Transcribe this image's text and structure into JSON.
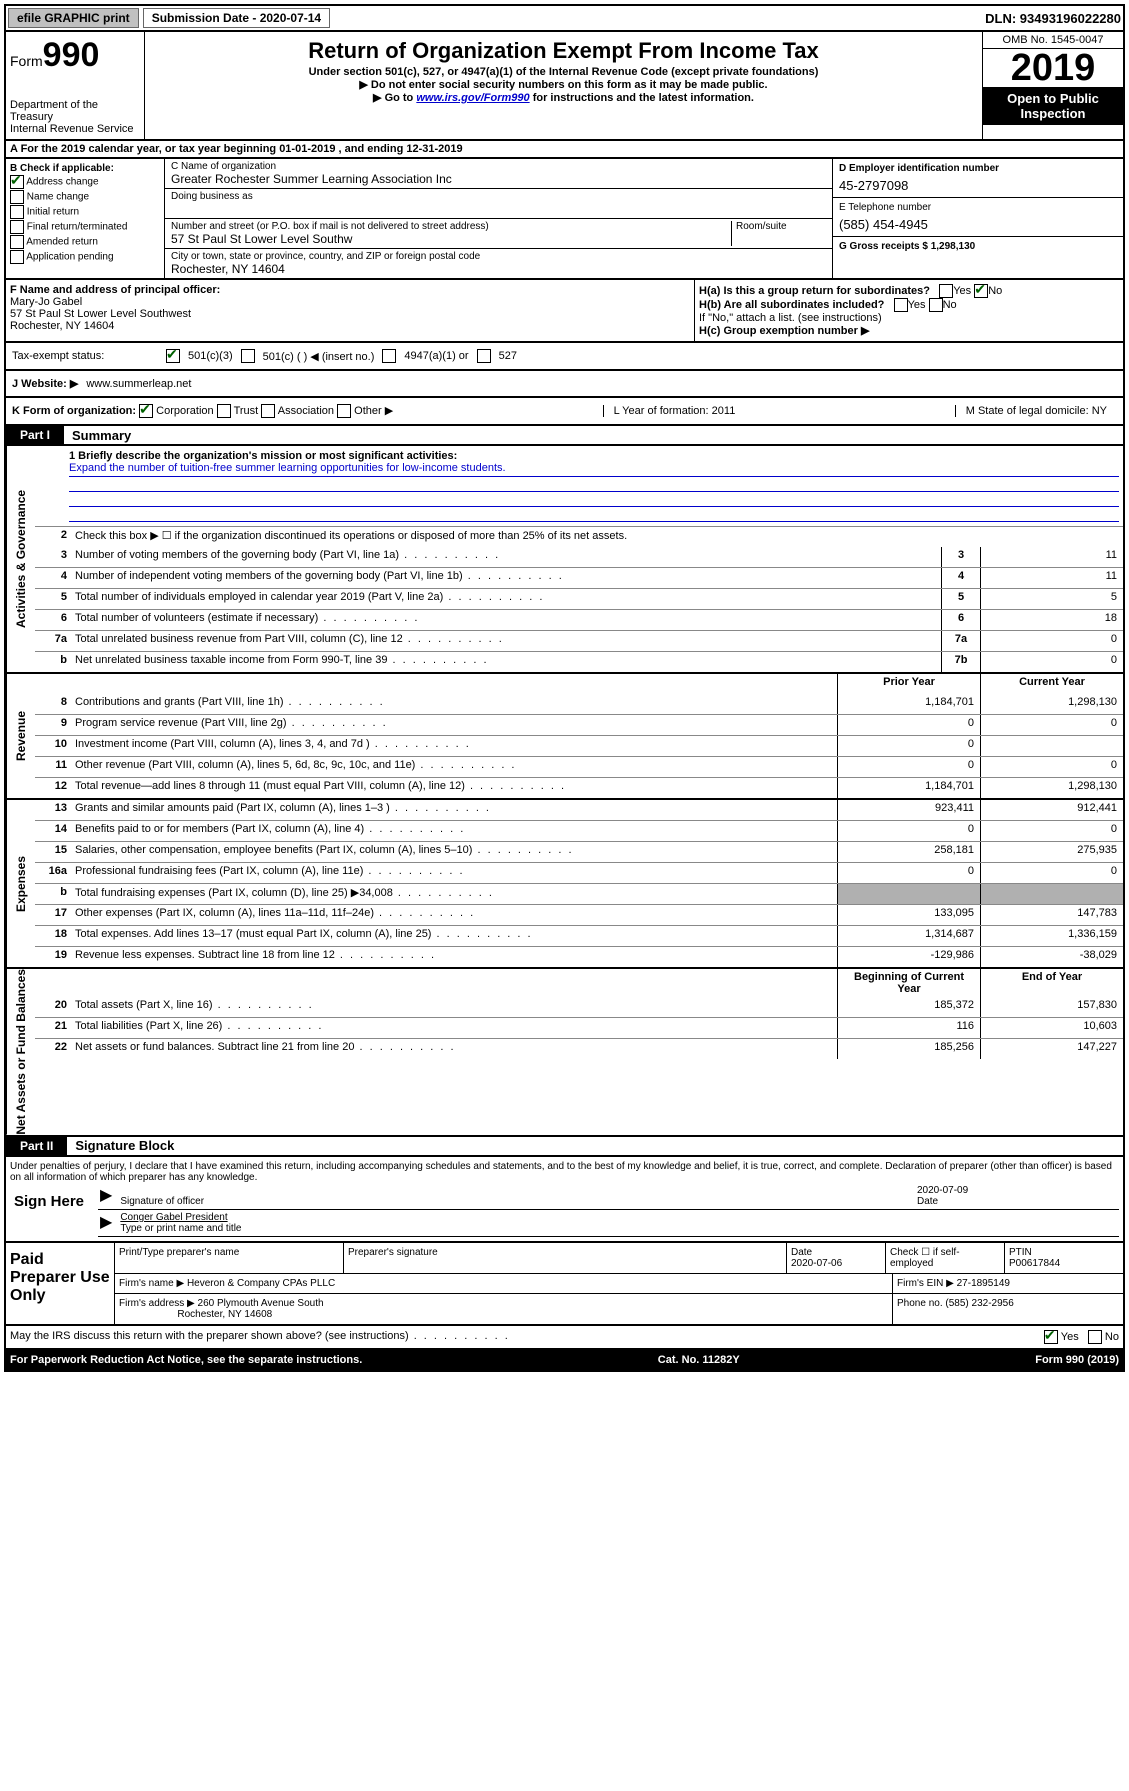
{
  "topbar": {
    "efile": "efile GRAPHIC print",
    "submission_label": "Submission Date - 2020-07-14",
    "dln": "DLN: 93493196022280"
  },
  "header": {
    "form_prefix": "Form",
    "form_number": "990",
    "dept": "Department of the Treasury\nInternal Revenue Service",
    "title": "Return of Organization Exempt From Income Tax",
    "subtitle": "Under section 501(c), 527, or 4947(a)(1) of the Internal Revenue Code (except private foundations)",
    "note1": "▶ Do not enter social security numbers on this form as it may be made public.",
    "note2_pre": "▶ Go to ",
    "note2_link": "www.irs.gov/Form990",
    "note2_post": " for instructions and the latest information.",
    "omb": "OMB No. 1545-0047",
    "year": "2019",
    "open": "Open to Public Inspection"
  },
  "rowA": "A  For the 2019 calendar year, or tax year beginning 01-01-2019    , and ending 12-31-2019",
  "boxB": {
    "header": "B Check if applicable:",
    "items": [
      "Address change",
      "Name change",
      "Initial return",
      "Final return/terminated",
      "Amended return",
      "Application pending"
    ],
    "checked_index": 0
  },
  "boxC": {
    "name_label": "C Name of organization",
    "name": "Greater Rochester Summer Learning Association Inc",
    "dba_label": "Doing business as",
    "addr_label": "Number and street (or P.O. box if mail is not delivered to street address)",
    "room_label": "Room/suite",
    "addr": "57 St Paul St Lower Level Southw",
    "city_label": "City or town, state or province, country, and ZIP or foreign postal code",
    "city": "Rochester, NY  14604"
  },
  "boxD": {
    "ein_label": "D Employer identification number",
    "ein": "45-2797098",
    "tel_label": "E Telephone number",
    "tel": "(585) 454-4945",
    "gross_label": "G Gross receipts $ 1,298,130"
  },
  "boxF": {
    "label": "F  Name and address of principal officer:",
    "name": "Mary-Jo Gabel",
    "addr1": "57 St Paul St Lower Level Southwest",
    "addr2": "Rochester, NY  14604"
  },
  "boxH": {
    "ha": "H(a)  Is this a group return for subordinates?",
    "hb": "H(b)  Are all subordinates included?",
    "hb_note": "If \"No,\" attach a list. (see instructions)",
    "hc": "H(c)  Group exemption number ▶"
  },
  "taxstatus": {
    "label": "Tax-exempt status:",
    "opt1": "501(c)(3)",
    "opt2": "501(c) (  ) ◀ (insert no.)",
    "opt3": "4947(a)(1) or",
    "opt4": "527"
  },
  "websiteJ": {
    "label": "J  Website: ▶",
    "url": "www.summerleap.net"
  },
  "rowK": {
    "label": "K Form of organization:",
    "opts": [
      "Corporation",
      "Trust",
      "Association",
      "Other ▶"
    ],
    "L": "L Year of formation: 2011",
    "M": "M State of legal domicile: NY"
  },
  "partI": {
    "tab": "Part I",
    "title": "Summary",
    "line1_label": "1  Briefly describe the organization's mission or most significant activities:",
    "line1_text": "Expand the number of tuition-free summer learning opportunities for low-income students.",
    "line2": "Check this box ▶ ☐  if the organization discontinued its operations or disposed of more than 25% of its net assets.",
    "lines_top": [
      {
        "n": "3",
        "d": "Number of voting members of the governing body (Part VI, line 1a)",
        "b": "3",
        "v": "11"
      },
      {
        "n": "4",
        "d": "Number of independent voting members of the governing body (Part VI, line 1b)",
        "b": "4",
        "v": "11"
      },
      {
        "n": "5",
        "d": "Total number of individuals employed in calendar year 2019 (Part V, line 2a)",
        "b": "5",
        "v": "5"
      },
      {
        "n": "6",
        "d": "Total number of volunteers (estimate if necessary)",
        "b": "6",
        "v": "18"
      },
      {
        "n": "7a",
        "d": "Total unrelated business revenue from Part VIII, column (C), line 12",
        "b": "7a",
        "v": "0"
      },
      {
        "n": "b",
        "d": "Net unrelated business taxable income from Form 990-T, line 39",
        "b": "7b",
        "v": "0"
      }
    ],
    "col_headers": {
      "prior": "Prior Year",
      "current": "Current Year"
    },
    "revenue": [
      {
        "n": "8",
        "d": "Contributions and grants (Part VIII, line 1h)",
        "p": "1,184,701",
        "c": "1,298,130"
      },
      {
        "n": "9",
        "d": "Program service revenue (Part VIII, line 2g)",
        "p": "0",
        "c": "0"
      },
      {
        "n": "10",
        "d": "Investment income (Part VIII, column (A), lines 3, 4, and 7d )",
        "p": "0",
        "c": ""
      },
      {
        "n": "11",
        "d": "Other revenue (Part VIII, column (A), lines 5, 6d, 8c, 9c, 10c, and 11e)",
        "p": "0",
        "c": "0"
      },
      {
        "n": "12",
        "d": "Total revenue—add lines 8 through 11 (must equal Part VIII, column (A), line 12)",
        "p": "1,184,701",
        "c": "1,298,130"
      }
    ],
    "expenses": [
      {
        "n": "13",
        "d": "Grants and similar amounts paid (Part IX, column (A), lines 1–3 )",
        "p": "923,411",
        "c": "912,441"
      },
      {
        "n": "14",
        "d": "Benefits paid to or for members (Part IX, column (A), line 4)",
        "p": "0",
        "c": "0"
      },
      {
        "n": "15",
        "d": "Salaries, other compensation, employee benefits (Part IX, column (A), lines 5–10)",
        "p": "258,181",
        "c": "275,935"
      },
      {
        "n": "16a",
        "d": "Professional fundraising fees (Part IX, column (A), line 11e)",
        "p": "0",
        "c": "0"
      },
      {
        "n": "b",
        "d": "Total fundraising expenses (Part IX, column (D), line 25) ▶34,008",
        "p": "",
        "c": "",
        "shaded": true
      },
      {
        "n": "17",
        "d": "Other expenses (Part IX, column (A), lines 11a–11d, 11f–24e)",
        "p": "133,095",
        "c": "147,783"
      },
      {
        "n": "18",
        "d": "Total expenses. Add lines 13–17 (must equal Part IX, column (A), line 25)",
        "p": "1,314,687",
        "c": "1,336,159"
      },
      {
        "n": "19",
        "d": "Revenue less expenses. Subtract line 18 from line 12",
        "p": "-129,986",
        "c": "-38,029"
      }
    ],
    "col_headers2": {
      "prior": "Beginning of Current Year",
      "current": "End of Year"
    },
    "netassets": [
      {
        "n": "20",
        "d": "Total assets (Part X, line 16)",
        "p": "185,372",
        "c": "157,830"
      },
      {
        "n": "21",
        "d": "Total liabilities (Part X, line 26)",
        "p": "116",
        "c": "10,603"
      },
      {
        "n": "22",
        "d": "Net assets or fund balances. Subtract line 21 from line 20",
        "p": "185,256",
        "c": "147,227"
      }
    ],
    "side_labels": {
      "gov": "Activities & Governance",
      "rev": "Revenue",
      "exp": "Expenses",
      "net": "Net Assets or Fund Balances"
    }
  },
  "partII": {
    "tab": "Part II",
    "title": "Signature Block",
    "perjury": "Under penalties of perjury, I declare that I have examined this return, including accompanying schedules and statements, and to the best of my knowledge and belief, it is true, correct, and complete. Declaration of preparer (other than officer) is based on all information of which preparer has any knowledge.",
    "sign_here": "Sign Here",
    "sig_officer": "Signature of officer",
    "sig_date": "2020-07-09",
    "date_label": "Date",
    "officer_name": "Conger Gabel President",
    "type_label": "Type or print name and title"
  },
  "paid": {
    "label": "Paid Preparer Use Only",
    "h1": "Print/Type preparer's name",
    "h2": "Preparer's signature",
    "h3": "Date",
    "h3v": "2020-07-06",
    "h4": "Check ☐ if self-employed",
    "h5": "PTIN",
    "h5v": "P00617844",
    "firm_name_l": "Firm's name    ▶",
    "firm_name": "Heveron & Company CPAs PLLC",
    "firm_ein_l": "Firm's EIN ▶",
    "firm_ein": "27-1895149",
    "firm_addr_l": "Firm's address ▶",
    "firm_addr": "260 Plymouth Avenue South",
    "firm_city": "Rochester, NY  14608",
    "phone_l": "Phone no.",
    "phone": "(585) 232-2956"
  },
  "footer": {
    "discuss": "May the IRS discuss this return with the preparer shown above? (see instructions)",
    "paperwork": "For Paperwork Reduction Act Notice, see the separate instructions.",
    "catno": "Cat. No. 11282Y",
    "formno": "Form 990 (2019)"
  }
}
